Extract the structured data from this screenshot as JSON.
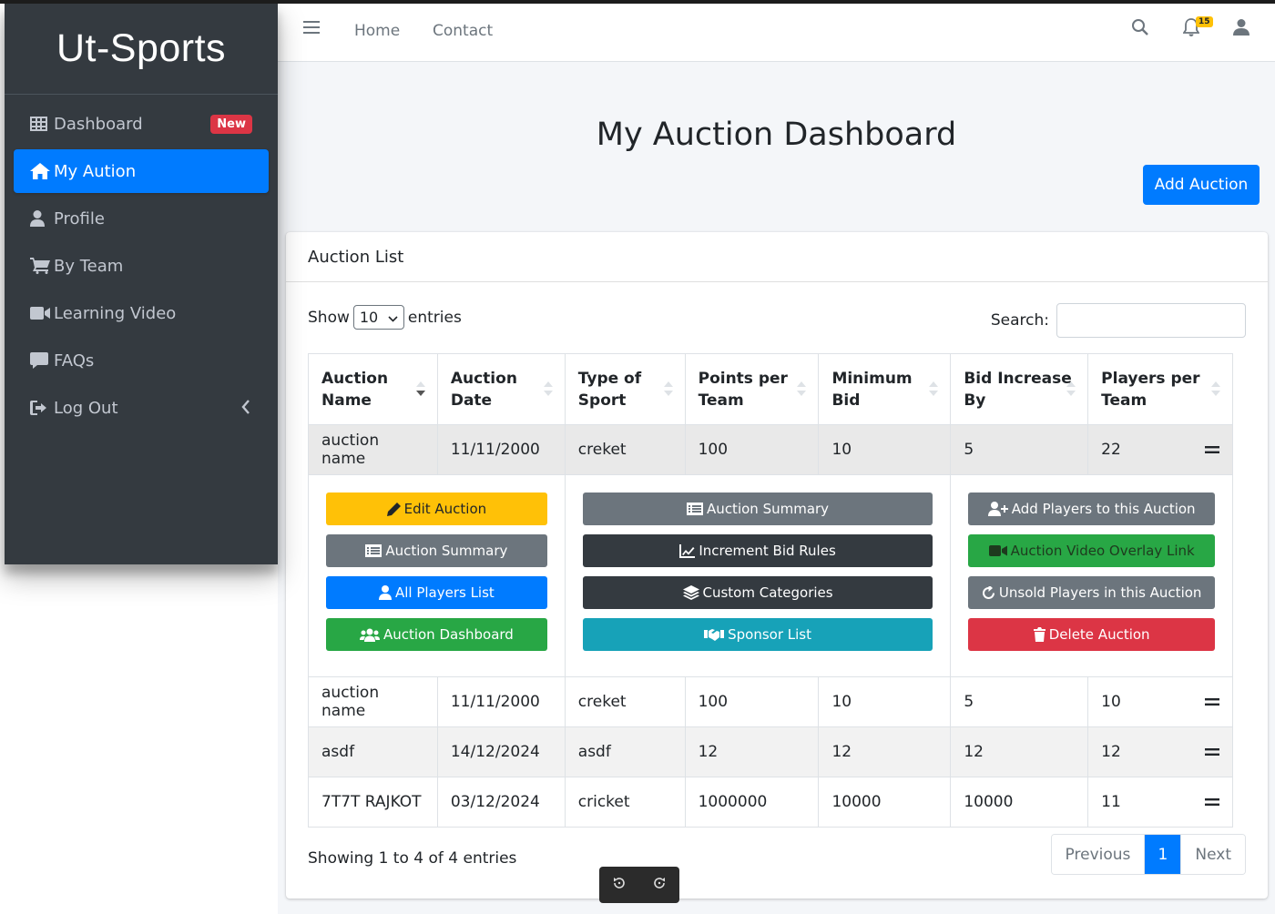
{
  "sidebar": {
    "brand": "Ut-Sports",
    "items": [
      {
        "label": "Dashboard",
        "icon": "table-icon",
        "badge": "New"
      },
      {
        "label": "My Aution",
        "icon": "home-icon",
        "active": true
      },
      {
        "label": "Profile",
        "icon": "user-icon"
      },
      {
        "label": "By Team",
        "icon": "cart-icon"
      },
      {
        "label": "Learning Video",
        "icon": "video-icon"
      },
      {
        "label": "FAQs",
        "icon": "comment-icon"
      },
      {
        "label": "Log Out",
        "icon": "sign-out-icon"
      }
    ]
  },
  "topbar": {
    "links": [
      "Home",
      "Contact"
    ],
    "notification_count": "15"
  },
  "page": {
    "title": "My Auction Dashboard",
    "add_button": "Add Auction"
  },
  "card": {
    "title": "Auction List",
    "show_label": "Show",
    "entries_value": "10",
    "entries_label": "entries",
    "search_label": "Search:"
  },
  "table": {
    "headers": [
      "Auction Name",
      "Auction Date",
      "Type of Sport",
      "Points per Team",
      "Minimum Bid",
      "Bid Increase By",
      "Players per Team"
    ],
    "rows": [
      [
        "auction name",
        "11/11/2000",
        "creket",
        "100",
        "10",
        "5",
        "22"
      ],
      [
        "auction name",
        "11/11/2000",
        "creket",
        "100",
        "10",
        "5",
        "10"
      ],
      [
        "asdf",
        "14/12/2024",
        "asdf",
        "12",
        "12",
        "12",
        "12"
      ],
      [
        "7T7T RAJKOT",
        "03/12/2024",
        "cricket",
        "1000000",
        "10000",
        "10000",
        "11"
      ]
    ]
  },
  "actions": {
    "col1": [
      "Edit Auction",
      "Auction Summary",
      "All Players List",
      "Auction Dashboard"
    ],
    "col2": [
      "Auction Summary",
      "Increment Bid Rules",
      "Custom Categories",
      "Sponsor List"
    ],
    "col3": [
      "Add Players to this Auction",
      "Auction Video Overlay Link",
      "Unsold Players in this Auction",
      "Delete Auction"
    ]
  },
  "footer": {
    "info": "Showing 1 to 4 of 4 entries",
    "previous": "Previous",
    "page": "1",
    "next": "Next"
  }
}
